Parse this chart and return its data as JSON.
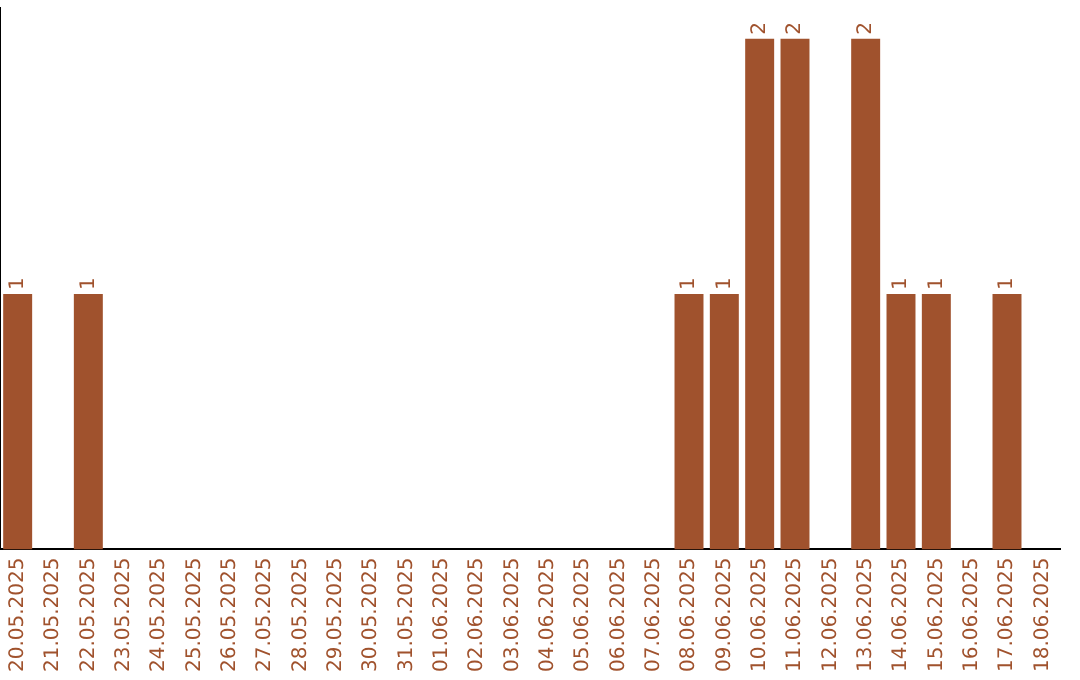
{
  "chart_data": {
    "type": "bar",
    "categories": [
      "20.05.2025",
      "21.05.2025",
      "22.05.2025",
      "23.05.2025",
      "24.05.2025",
      "25.05.2025",
      "26.05.2025",
      "27.05.2025",
      "28.05.2025",
      "29.05.2025",
      "30.05.2025",
      "31.05.2025",
      "01.06.2025",
      "02.06.2025",
      "03.06.2025",
      "04.06.2025",
      "05.06.2025",
      "06.06.2025",
      "07.06.2025",
      "08.06.2025",
      "09.06.2025",
      "10.06.2025",
      "11.06.2025",
      "12.06.2025",
      "13.06.2025",
      "14.06.2025",
      "15.06.2025",
      "16.06.2025",
      "17.06.2025",
      "18.06.2025"
    ],
    "values": [
      1,
      0,
      1,
      0,
      0,
      0,
      0,
      0,
      0,
      0,
      0,
      0,
      0,
      0,
      0,
      0,
      0,
      0,
      0,
      1,
      1,
      2,
      2,
      0,
      2,
      1,
      1,
      0,
      1,
      0
    ],
    "value_labels": [
      "1",
      null,
      "1",
      null,
      null,
      null,
      null,
      null,
      null,
      null,
      null,
      null,
      null,
      null,
      null,
      null,
      null,
      null,
      null,
      "1",
      "1",
      "2",
      "2",
      null,
      "2",
      "1",
      "1",
      null,
      "1",
      null
    ],
    "color": "#a0522d",
    "grid": false,
    "legend": false,
    "tick_labels": "x"
  }
}
